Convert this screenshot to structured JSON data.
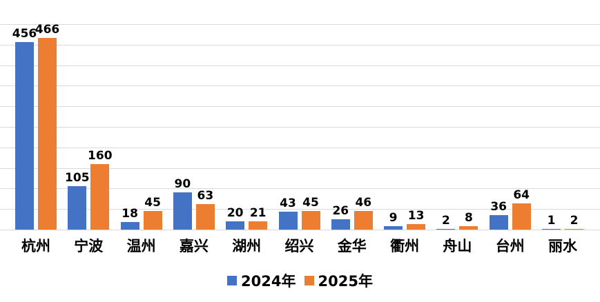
{
  "chart_data": {
    "type": "bar",
    "categories": [
      "杭州",
      "宁波",
      "温州",
      "嘉兴",
      "湖州",
      "绍兴",
      "金华",
      "衢州",
      "舟山",
      "台州",
      "丽水"
    ],
    "series": [
      {
        "name": "2024年",
        "color": "#4472C4",
        "values": [
          456,
          105,
          18,
          90,
          20,
          43,
          26,
          9,
          2,
          36,
          1
        ]
      },
      {
        "name": "2025年",
        "color": "#ED7D31",
        "values": [
          466,
          160,
          45,
          63,
          21,
          45,
          46,
          13,
          8,
          64,
          2
        ]
      }
    ],
    "title": "",
    "xlabel": "",
    "ylabel": "",
    "ylim": [
      0,
      500
    ],
    "gridline_interval": 50,
    "grid": true,
    "gridline_color": "#D9D9D9",
    "background": "#FFFFFF",
    "data_labels": true,
    "data_label_color": "#000000",
    "legend_position": "bottom"
  }
}
